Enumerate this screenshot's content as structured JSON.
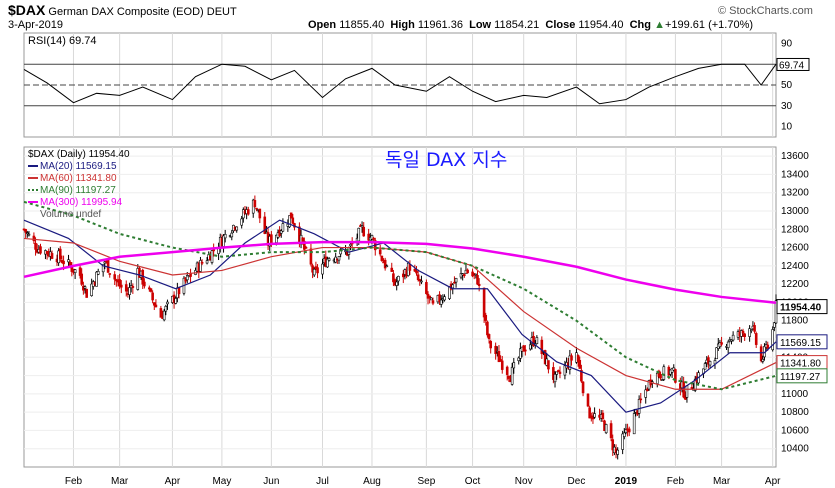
{
  "header": {
    "symbol": "$DAX",
    "name": "German DAX Composite (EOD)",
    "exchange": "DEUT",
    "date": "3-Apr-2019",
    "brand": "© StockCharts.com",
    "open_label": "Open",
    "open": "11855.40",
    "high_label": "High",
    "high": "11961.36",
    "low_label": "Low",
    "low": "11854.21",
    "close_label": "Close",
    "close": "11954.40",
    "chg_label": "Chg",
    "chg": "+199.61 (+1.70%)",
    "chg_arrow": "▲"
  },
  "annotation": "독일 DAX 지수",
  "colors": {
    "up": "#000000",
    "down": "#cc0000",
    "ma20": "#1a1a80",
    "ma60": "#cc3333",
    "ma90": "#2e7d32",
    "ma300": "#ee00ee",
    "rsi": "#000000",
    "grid": "#d9d9d9"
  },
  "chart_data": [
    {
      "type": "line",
      "name": "rsi",
      "legend": "RSI(14) 69.74",
      "last_value": "69.74",
      "ylim": [
        0,
        100
      ],
      "yticks": [
        10,
        30,
        50,
        70,
        90
      ],
      "reference_lines": [
        30,
        50,
        70
      ],
      "x": [
        "2018-01-02",
        "2018-01-16",
        "2018-02-01",
        "2018-02-15",
        "2018-03-01",
        "2018-03-15",
        "2018-04-02",
        "2018-04-16",
        "2018-05-02",
        "2018-05-16",
        "2018-06-01",
        "2018-06-15",
        "2018-07-02",
        "2018-07-16",
        "2018-08-01",
        "2018-08-15",
        "2018-09-03",
        "2018-09-17",
        "2018-10-01",
        "2018-10-15",
        "2018-11-01",
        "2018-11-15",
        "2018-12-03",
        "2018-12-17",
        "2019-01-02",
        "2019-01-16",
        "2019-02-01",
        "2019-02-15",
        "2019-03-01",
        "2019-03-15",
        "2019-03-25",
        "2019-04-03"
      ],
      "values": [
        65,
        52,
        33,
        42,
        40,
        48,
        36,
        58,
        70,
        68,
        55,
        64,
        38,
        56,
        66,
        50,
        44,
        58,
        44,
        34,
        40,
        38,
        48,
        32,
        36,
        48,
        58,
        66,
        70,
        70,
        50,
        70
      ]
    },
    {
      "type": "candlestick",
      "name": "price",
      "legend": [
        "$DAX (Daily) 11954.40",
        "MA(20) 11569.15",
        "MA(60) 11341.80",
        "MA(90) 11197.27",
        "MA(300) 11995.94",
        "Volume undef"
      ],
      "ylim": [
        10200,
        13700
      ],
      "yticks": [
        10400,
        10600,
        10800,
        11000,
        11200,
        11400,
        11600,
        11800,
        12000,
        12200,
        12400,
        12600,
        12800,
        13000,
        13200,
        13400,
        13600
      ],
      "x_start": "2018-01-02",
      "x_end": "2019-04-03",
      "x_tick_labels": [
        "Feb",
        "Mar",
        "Apr",
        "May",
        "Jun",
        "Jul",
        "Aug",
        "Sep",
        "Oct",
        "Nov",
        "Dec",
        "2019",
        "Feb",
        "Mar",
        "Apr"
      ],
      "x_tick_dates": [
        "2018-02-01",
        "2018-03-01",
        "2018-04-02",
        "2018-05-02",
        "2018-06-01",
        "2018-07-02",
        "2018-08-01",
        "2018-09-03",
        "2018-10-01",
        "2018-11-01",
        "2018-12-03",
        "2019-01-02",
        "2019-02-01",
        "2019-03-01",
        "2019-04-01"
      ],
      "close_path": [
        [
          "2018-01-02",
          12800
        ],
        [
          "2018-01-10",
          12600
        ],
        [
          "2018-01-23",
          12500
        ],
        [
          "2018-02-05",
          12300
        ],
        [
          "2018-02-09",
          12100
        ],
        [
          "2018-02-20",
          12450
        ],
        [
          "2018-02-28",
          12200
        ],
        [
          "2018-03-06",
          12100
        ],
        [
          "2018-03-12",
          12350
        ],
        [
          "2018-03-26",
          11850
        ],
        [
          "2018-04-03",
          12050
        ],
        [
          "2018-04-13",
          12300
        ],
        [
          "2018-04-26",
          12550
        ],
        [
          "2018-05-07",
          12800
        ],
        [
          "2018-05-22",
          13100
        ],
        [
          "2018-05-30",
          12650
        ],
        [
          "2018-06-06",
          12800
        ],
        [
          "2018-06-13",
          12950
        ],
        [
          "2018-06-27",
          12300
        ],
        [
          "2018-07-06",
          12500
        ],
        [
          "2018-07-17",
          12550
        ],
        [
          "2018-07-26",
          12800
        ],
        [
          "2018-08-01",
          12700
        ],
        [
          "2018-08-15",
          12200
        ],
        [
          "2018-08-24",
          12400
        ],
        [
          "2018-09-07",
          11950
        ],
        [
          "2018-09-14",
          12100
        ],
        [
          "2018-09-27",
          12350
        ],
        [
          "2018-10-04",
          12250
        ],
        [
          "2018-10-11",
          11550
        ],
        [
          "2018-10-24",
          11200
        ],
        [
          "2018-11-01",
          11500
        ],
        [
          "2018-11-08",
          11600
        ],
        [
          "2018-11-20",
          11150
        ],
        [
          "2018-12-03",
          11450
        ],
        [
          "2018-12-10",
          10800
        ],
        [
          "2018-12-19",
          10700
        ],
        [
          "2018-12-27",
          10350
        ],
        [
          "2019-01-07",
          10750
        ],
        [
          "2019-01-18",
          11200
        ],
        [
          "2019-01-30",
          11250
        ],
        [
          "2019-02-07",
          11000
        ],
        [
          "2019-02-19",
          11300
        ],
        [
          "2019-02-28",
          11500
        ],
        [
          "2019-03-05",
          11600
        ],
        [
          "2019-03-13",
          11650
        ],
        [
          "2019-03-19",
          11750
        ],
        [
          "2019-03-25",
          11350
        ],
        [
          "2019-04-01",
          11700
        ],
        [
          "2019-04-03",
          11954.4
        ]
      ],
      "series": [
        {
          "name": "MA(20)",
          "value": "11569.15",
          "points": [
            [
              "2018-01-02",
              12900
            ],
            [
              "2018-01-29",
              12700
            ],
            [
              "2018-02-19",
              12400
            ],
            [
              "2018-03-13",
              12300
            ],
            [
              "2018-04-04",
              12150
            ],
            [
              "2018-04-25",
              12300
            ],
            [
              "2018-05-16",
              12650
            ],
            [
              "2018-06-06",
              12900
            ],
            [
              "2018-06-27",
              12750
            ],
            [
              "2018-07-18",
              12550
            ],
            [
              "2018-08-08",
              12650
            ],
            [
              "2018-08-29",
              12350
            ],
            [
              "2018-09-19",
              12150
            ],
            [
              "2018-10-10",
              12150
            ],
            [
              "2018-10-31",
              11650
            ],
            [
              "2018-11-21",
              11350
            ],
            [
              "2018-12-12",
              11200
            ],
            [
              "2019-01-02",
              10800
            ],
            [
              "2019-01-23",
              10900
            ],
            [
              "2019-02-13",
              11150
            ],
            [
              "2019-03-06",
              11450
            ],
            [
              "2019-03-27",
              11450
            ],
            [
              "2019-04-03",
              11569
            ]
          ]
        },
        {
          "name": "MA(60)",
          "value": "11341.80",
          "points": [
            [
              "2018-01-02",
              12700
            ],
            [
              "2018-02-01",
              12650
            ],
            [
              "2018-03-01",
              12450
            ],
            [
              "2018-04-02",
              12300
            ],
            [
              "2018-05-02",
              12350
            ],
            [
              "2018-06-01",
              12500
            ],
            [
              "2018-07-02",
              12600
            ],
            [
              "2018-08-01",
              12600
            ],
            [
              "2018-09-03",
              12550
            ],
            [
              "2018-10-01",
              12400
            ],
            [
              "2018-11-01",
              11900
            ],
            [
              "2018-12-03",
              11500
            ],
            [
              "2019-01-02",
              11200
            ],
            [
              "2019-02-01",
              11050
            ],
            [
              "2019-03-01",
              11050
            ],
            [
              "2019-04-03",
              11342
            ]
          ]
        },
        {
          "name": "MA(90)",
          "value": "11197.27",
          "points": [
            [
              "2018-01-02",
              13100
            ],
            [
              "2018-02-01",
              12950
            ],
            [
              "2018-03-01",
              12750
            ],
            [
              "2018-04-02",
              12600
            ],
            [
              "2018-05-02",
              12500
            ],
            [
              "2018-06-01",
              12550
            ],
            [
              "2018-07-02",
              12550
            ],
            [
              "2018-08-01",
              12600
            ],
            [
              "2018-09-03",
              12550
            ],
            [
              "2018-10-01",
              12400
            ],
            [
              "2018-11-01",
              12150
            ],
            [
              "2018-12-03",
              11800
            ],
            [
              "2019-01-02",
              11400
            ],
            [
              "2019-02-01",
              11150
            ],
            [
              "2019-03-01",
              11050
            ],
            [
              "2019-04-03",
              11197
            ]
          ]
        },
        {
          "name": "MA(300)",
          "value": "11995.94",
          "points": [
            [
              "2018-01-02",
              12280
            ],
            [
              "2018-02-01",
              12400
            ],
            [
              "2018-03-01",
              12500
            ],
            [
              "2018-04-02",
              12550
            ],
            [
              "2018-05-02",
              12600
            ],
            [
              "2018-06-01",
              12640
            ],
            [
              "2018-07-02",
              12660
            ],
            [
              "2018-08-01",
              12660
            ],
            [
              "2018-09-03",
              12640
            ],
            [
              "2018-10-01",
              12590
            ],
            [
              "2018-11-01",
              12500
            ],
            [
              "2018-12-03",
              12390
            ],
            [
              "2019-01-02",
              12250
            ],
            [
              "2019-02-01",
              12140
            ],
            [
              "2019-03-01",
              12060
            ],
            [
              "2019-04-03",
              11996
            ]
          ]
        }
      ],
      "value_tags": [
        "11954.40",
        "11569.15",
        "11341.80",
        "11197.27"
      ]
    }
  ]
}
